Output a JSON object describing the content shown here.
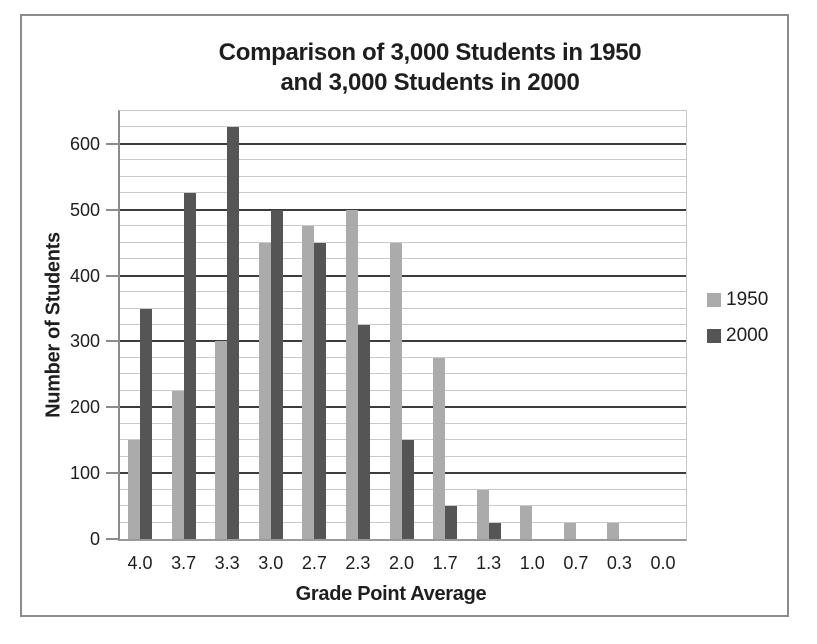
{
  "chart_data": {
    "type": "bar",
    "title": "Comparison of 3,000 Students in 1950 and 3,000 Students in 2000",
    "title_lines": [
      "Comparison of 3,000 Students in 1950",
      "and 3,000 Students in 2000"
    ],
    "xlabel": "Grade Point Average",
    "ylabel": "Number of Students",
    "categories": [
      "4.0",
      "3.7",
      "3.3",
      "3.0",
      "2.7",
      "2.3",
      "2.0",
      "1.7",
      "1.3",
      "1.0",
      "0.7",
      "0.3",
      "0.0"
    ],
    "series": [
      {
        "name": "1950",
        "color": "#ababab",
        "values": [
          150,
          225,
          300,
          450,
          475,
          500,
          450,
          275,
          75,
          50,
          25,
          25,
          0
        ]
      },
      {
        "name": "2000",
        "color": "#555555",
        "values": [
          350,
          525,
          625,
          500,
          450,
          325,
          150,
          50,
          25,
          0,
          0,
          0,
          0
        ]
      }
    ],
    "ylim": [
      0,
      650
    ],
    "ytick_interval": 100,
    "ytick_labels": [
      "0",
      "100",
      "200",
      "300",
      "400",
      "500",
      "600"
    ],
    "minor_grid_interval": 25,
    "grid": true,
    "legend_position": "right",
    "colors": {
      "major_gridline": "#3c3c3c",
      "minor_gridline": "#c9c9c9",
      "axis_line": "#8c8c8c",
      "frame_border": "#8c8c8c",
      "text": "#1e1e1e",
      "background": "#ffffff"
    }
  }
}
